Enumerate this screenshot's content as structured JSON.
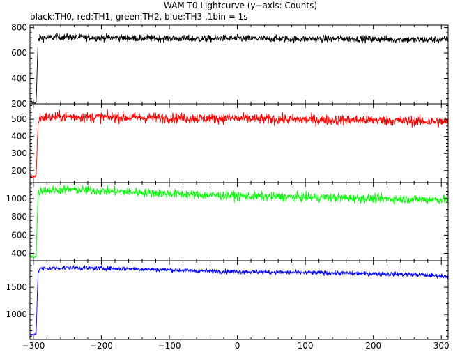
{
  "chart_data": {
    "type": "line",
    "title": "WAM T0 Lightcurve (y−axis: Counts)",
    "subtitle": "black:TH0, red:TH1, green:TH2, blue:TH3 ,1bin = 1s",
    "xlabel": "",
    "xlim": [
      -305,
      310
    ],
    "xticks": [
      -300,
      -200,
      -100,
      0,
      100,
      200,
      300
    ],
    "xtick_labels": [
      "−300",
      "−200",
      "−100",
      "0",
      "100",
      "200",
      "300"
    ],
    "legend": "none",
    "grid": false,
    "panels": [
      {
        "name": "TH0",
        "color": "#000000",
        "ylim": [
          200,
          820
        ],
        "yticks": [
          200,
          400,
          600,
          800
        ],
        "pre_level": 215,
        "post_start": 715,
        "post_end": 710,
        "noise": 20,
        "series": [
          {
            "x": [
              -305,
              -296,
              -293,
              -290,
              -250,
              -200,
              -150,
              -100,
              -50,
              0,
              50,
              100,
              150,
              200,
              250,
              300,
              310
            ],
            "y": [
              215,
              210,
              700,
              720,
              725,
              720,
              718,
              715,
              712,
              715,
              712,
              710,
              712,
              710,
              705,
              705,
              710
            ]
          }
        ]
      },
      {
        "name": "TH1",
        "color": "#ff0000",
        "ylim": [
          130,
          590
        ],
        "yticks": [
          200,
          300,
          400,
          500
        ],
        "pre_level": 160,
        "post_start": 515,
        "post_end": 485,
        "noise": 22,
        "series": [
          {
            "x": [
              -305,
              -296,
              -293,
              -290,
              -250,
              -200,
              -150,
              -100,
              -50,
              0,
              50,
              100,
              150,
              200,
              250,
              300,
              310
            ],
            "y": [
              160,
              170,
              480,
              510,
              515,
              512,
              510,
              508,
              505,
              505,
              500,
              498,
              495,
              495,
              490,
              485,
              485
            ]
          }
        ]
      },
      {
        "name": "TH2",
        "color": "#00ff00",
        "ylim": [
          320,
          1175
        ],
        "yticks": [
          400,
          600,
          800,
          1000
        ],
        "pre_level": 365,
        "post_start": 1100,
        "post_end": 990,
        "noise": 35,
        "series": [
          {
            "x": [
              -305,
              -296,
              -293,
              -290,
              -250,
              -200,
              -150,
              -100,
              -50,
              0,
              50,
              100,
              150,
              200,
              250,
              300,
              310
            ],
            "y": [
              365,
              370,
              1050,
              1090,
              1100,
              1085,
              1070,
              1055,
              1040,
              1030,
              1020,
              1015,
              1010,
              1000,
              995,
              990,
              990
            ]
          }
        ]
      },
      {
        "name": "TH3",
        "color": "#0000ff",
        "ylim": [
          540,
          1990
        ],
        "yticks": [
          1000,
          1500
        ],
        "pre_level": 620,
        "post_start": 1850,
        "post_end": 1700,
        "noise": 30,
        "series": [
          {
            "x": [
              -305,
              -296,
              -293,
              -290,
              -250,
              -200,
              -150,
              -100,
              -50,
              0,
              50,
              100,
              150,
              200,
              250,
              300,
              310
            ],
            "y": [
              620,
              640,
              1800,
              1840,
              1860,
              1850,
              1840,
              1820,
              1800,
              1790,
              1780,
              1770,
              1760,
              1750,
              1740,
              1710,
              1700
            ]
          }
        ]
      }
    ]
  }
}
